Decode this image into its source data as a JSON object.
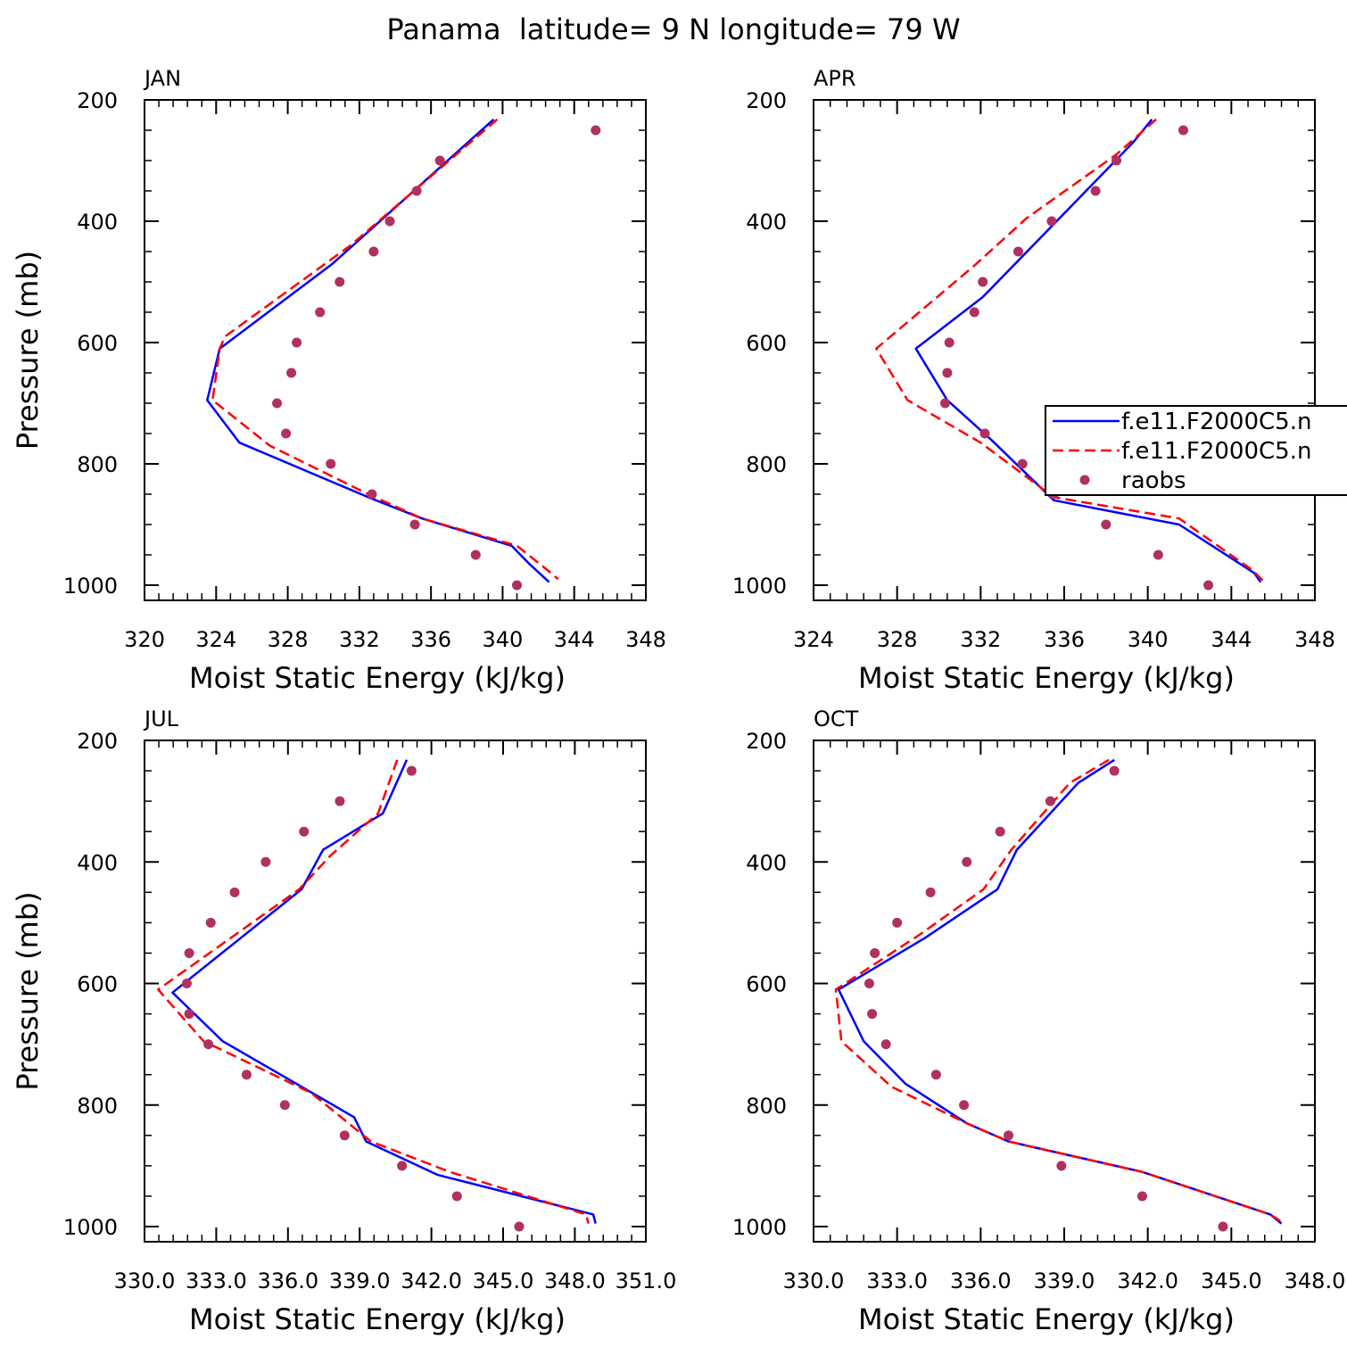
{
  "figure": {
    "title": "Panama  latitude= 9 N longitude= 79 W"
  },
  "colors": {
    "model1": "#0000ff",
    "model2": "#ff0000",
    "raobs": "#b03060"
  },
  "legend": {
    "entries": [
      "f.e11.F2000C5.n",
      "f.e11.F2000C5.n",
      "raobs"
    ]
  },
  "chart_data": [
    {
      "type": "line",
      "panel_label": "JAN",
      "xlabel": "Moist Static Energy (kJ/kg)",
      "ylabel": "Pressure (mb)",
      "xlim": [
        320,
        348
      ],
      "ylim": [
        1000,
        200
      ],
      "y_reversed": true,
      "xticks": [
        320,
        324,
        328,
        332,
        336,
        340,
        344,
        348
      ],
      "xtick_labels": [
        "320",
        "324",
        "328",
        "332",
        "336",
        "340",
        "344",
        "348"
      ],
      "yticks": [
        200,
        400,
        600,
        800,
        1000
      ],
      "ytick_labels": [
        "200",
        "400",
        "600",
        "800",
        "1000"
      ],
      "series": [
        {
          "style": "solid",
          "color": "#0000ff",
          "x": [
            339.5,
            330.5,
            324.2,
            323.5,
            325.3,
            332.5,
            335.5,
            340.5,
            341.5,
            342.6
          ],
          "y": [
            232,
            470,
            610,
            695,
            765,
            855,
            890,
            935,
            965,
            995
          ]
        },
        {
          "style": "dashed",
          "color": "#ff0000",
          "x": [
            339.7,
            331.5,
            324.5,
            324.2,
            323.8,
            327.0,
            332.5,
            335.5,
            340.8,
            342.5,
            343.1
          ],
          "y": [
            232,
            440,
            590,
            610,
            695,
            770,
            850,
            890,
            935,
            975,
            990
          ]
        },
        {
          "style": "markers",
          "color": "#b03060",
          "x": [
            345.2,
            336.5,
            335.2,
            333.7,
            332.8,
            330.9,
            329.8,
            328.5,
            328.2,
            327.4,
            327.9,
            330.4,
            332.7,
            335.1,
            338.5,
            340.8
          ],
          "y": [
            250,
            300,
            350,
            400,
            450,
            500,
            550,
            600,
            650,
            700,
            750,
            800,
            850,
            900,
            950,
            1000
          ]
        }
      ]
    },
    {
      "type": "line",
      "panel_label": "APR",
      "xlabel": "Moist Static Energy (kJ/kg)",
      "ylabel": "",
      "xlim": [
        324,
        348
      ],
      "ylim": [
        1000,
        200
      ],
      "y_reversed": true,
      "xticks": [
        324,
        328,
        332,
        336,
        340,
        344,
        348
      ],
      "xtick_labels": [
        "324",
        "328",
        "332",
        "336",
        "340",
        "344",
        "348"
      ],
      "yticks": [
        200,
        400,
        600,
        800,
        1000
      ],
      "ytick_labels": [
        "200",
        "400",
        "600",
        "800",
        "1000"
      ],
      "series": [
        {
          "style": "solid",
          "color": "#0000ff",
          "x": [
            340.2,
            339.3,
            336.2,
            332.1,
            328.9,
            330.4,
            332.5,
            335.5,
            341.5,
            345.1,
            345.4
          ],
          "y": [
            232,
            270,
            380,
            525,
            610,
            695,
            760,
            860,
            900,
            980,
            995
          ]
        },
        {
          "style": "dashed",
          "color": "#ff0000",
          "x": [
            340.4,
            338.5,
            334.2,
            331.8,
            327.0,
            328.5,
            332.0,
            335.5,
            341.5,
            345.0,
            345.5
          ],
          "y": [
            232,
            290,
            395,
            470,
            610,
            695,
            765,
            855,
            890,
            975,
            992
          ]
        },
        {
          "style": "markers",
          "color": "#b03060",
          "x": [
            341.7,
            338.5,
            337.5,
            335.4,
            333.8,
            332.1,
            331.7,
            330.5,
            330.4,
            330.3,
            332.2,
            334.0,
            335.5,
            338.0,
            340.5,
            342.9
          ],
          "y": [
            250,
            300,
            350,
            400,
            450,
            500,
            550,
            600,
            650,
            700,
            750,
            800,
            850,
            900,
            950,
            1000
          ]
        }
      ]
    },
    {
      "type": "line",
      "panel_label": "JUL",
      "xlabel": "Moist Static Energy (kJ/kg)",
      "ylabel": "Pressure (mb)",
      "xlim": [
        330.03,
        351.0
      ],
      "ylim": [
        1000,
        200
      ],
      "y_reversed": true,
      "xticks": [
        330.03,
        333.03,
        336.03,
        339.03,
        342.03,
        345.03,
        348.03,
        351.0
      ],
      "xtick_labels": [
        "330.0",
        "333.0",
        "336.0",
        "339.0",
        "342.0",
        "345.0",
        "348.0",
        "351.0"
      ],
      "yticks": [
        200,
        400,
        600,
        800,
        1000
      ],
      "ytick_labels": [
        "200",
        "400",
        "600",
        "800",
        "1000"
      ],
      "series": [
        {
          "style": "solid",
          "color": "#0000ff",
          "x": [
            341.0,
            340.0,
            337.5,
            336.6,
            331.2,
            333.3,
            338.8,
            339.3,
            342.3,
            348.8,
            348.9
          ],
          "y": [
            232,
            320,
            380,
            445,
            615,
            695,
            820,
            860,
            915,
            980,
            995
          ]
        },
        {
          "style": "dashed",
          "color": "#ff0000",
          "x": [
            340.6,
            339.8,
            337.8,
            336.5,
            330.6,
            332.5,
            337.0,
            339.5,
            342.8,
            348.5,
            348.6
          ],
          "y": [
            232,
            320,
            390,
            445,
            610,
            695,
            780,
            860,
            910,
            980,
            995
          ]
        },
        {
          "style": "markers",
          "color": "#b03060",
          "x": [
            341.2,
            338.2,
            336.7,
            335.1,
            333.8,
            332.8,
            331.9,
            331.8,
            331.9,
            332.7,
            334.3,
            335.9,
            338.4,
            340.8,
            343.1,
            345.7
          ],
          "y": [
            250,
            300,
            350,
            400,
            450,
            500,
            550,
            600,
            650,
            700,
            750,
            800,
            850,
            900,
            950,
            1000
          ]
        }
      ]
    },
    {
      "type": "line",
      "panel_label": "OCT",
      "xlabel": "Moist Static Energy (kJ/kg)",
      "ylabel": "",
      "xlim": [
        330,
        348
      ],
      "ylim": [
        1000,
        200
      ],
      "y_reversed": true,
      "xticks": [
        330,
        333,
        336,
        339,
        342,
        345,
        348
      ],
      "xtick_labels": [
        "330.0",
        "333.0",
        "336.0",
        "339.0",
        "342.0",
        "345.0",
        "348.0"
      ],
      "yticks": [
        200,
        400,
        600,
        800,
        1000
      ],
      "ytick_labels": [
        "200",
        "400",
        "600",
        "800",
        "1000"
      ],
      "series": [
        {
          "style": "solid",
          "color": "#0000ff",
          "x": [
            340.8,
            339.5,
            337.3,
            336.6,
            334.0,
            330.9,
            331.8,
            333.3,
            335.5,
            337.0,
            341.8,
            346.4,
            346.8
          ],
          "y": [
            232,
            270,
            380,
            445,
            525,
            610,
            695,
            765,
            830,
            860,
            910,
            980,
            995
          ]
        },
        {
          "style": "dashed",
          "color": "#ff0000",
          "x": [
            340.6,
            339.2,
            337.1,
            336.1,
            333.8,
            330.8,
            331.0,
            332.8,
            335.5,
            337.0,
            341.8,
            346.4,
            346.9
          ],
          "y": [
            232,
            270,
            380,
            445,
            520,
            610,
            695,
            770,
            830,
            860,
            910,
            980,
            995
          ]
        },
        {
          "style": "markers",
          "color": "#b03060",
          "x": [
            340.8,
            338.5,
            336.7,
            335.5,
            334.2,
            333.0,
            332.2,
            332.0,
            332.1,
            332.6,
            334.4,
            335.4,
            337.0,
            338.9,
            341.8,
            344.7
          ],
          "y": [
            250,
            300,
            350,
            400,
            450,
            500,
            550,
            600,
            650,
            700,
            750,
            800,
            850,
            900,
            950,
            1000
          ]
        }
      ]
    }
  ]
}
